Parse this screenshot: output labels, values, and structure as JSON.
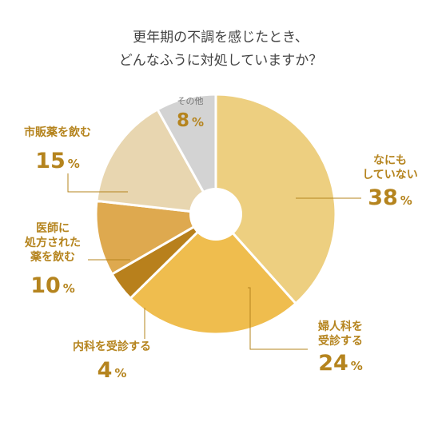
{
  "chart_data": {
    "type": "pie",
    "title_lines": [
      "更年期の不調を感じたとき、",
      "どんなふうに対処していますか？"
    ],
    "unit": "%",
    "slices": [
      {
        "label_lines": [
          "なにも",
          "していない"
        ],
        "value": 38,
        "color": "#edcf80"
      },
      {
        "label_lines": [
          "婦人科を",
          "受診する"
        ],
        "value": 24,
        "color": "#efbd4e"
      },
      {
        "label_lines": [
          "内科を受診する"
        ],
        "value": 4,
        "color": "#b8801c"
      },
      {
        "label_lines": [
          "医師に",
          "処方された",
          "薬を飲む"
        ],
        "value": 10,
        "color": "#dea94f"
      },
      {
        "label_lines": [
          "市販薬を飲む"
        ],
        "value": 15,
        "color": "#e8d6b0"
      },
      {
        "label_lines": [
          "その他"
        ],
        "value": 8,
        "color": "#d3d3d3"
      }
    ]
  }
}
